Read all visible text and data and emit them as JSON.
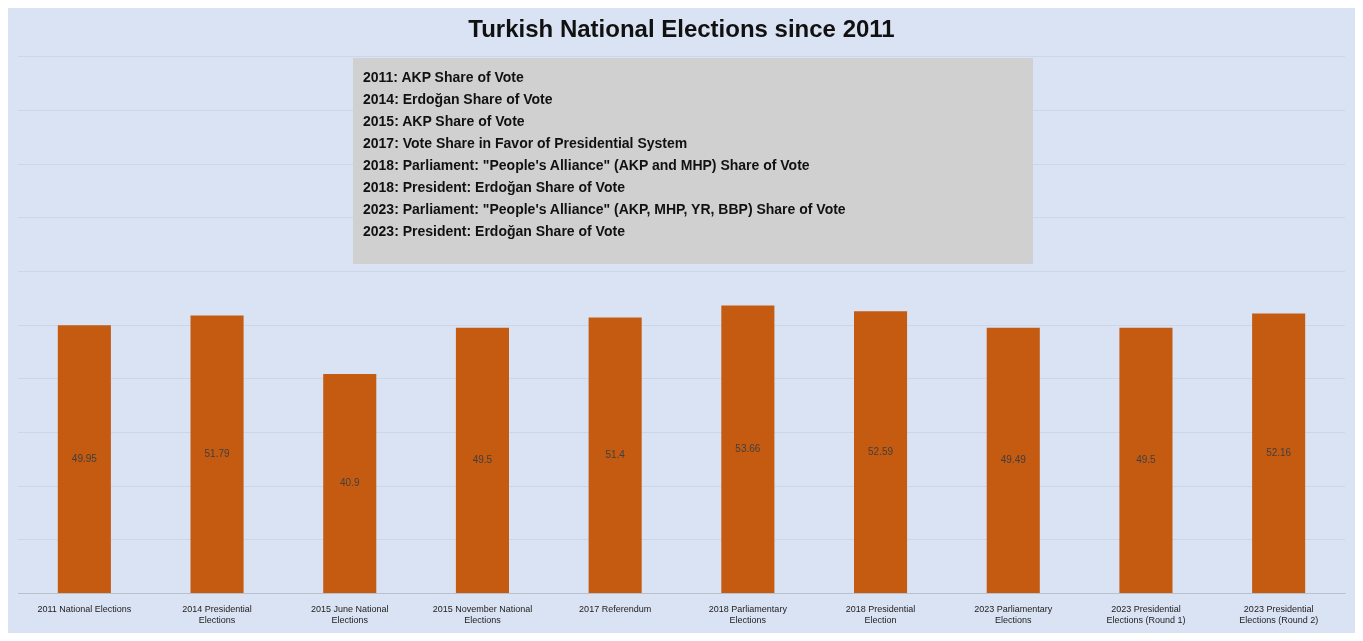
{
  "chart_data": {
    "type": "bar",
    "title": "Turkish National Elections since 2011",
    "categories": [
      "2011 National Elections",
      "2014 Presidential Elections",
      "2015 June National Elections",
      "2015 November National Elections",
      "2017 Referendum",
      "2018 Parliamentary Elections",
      "2018 Presidential Election",
      "2023 Parliamentary Elections",
      "2023 Presidential Elections (Round 1)",
      "2023 Presidential Elections (Round 2)"
    ],
    "values": [
      49.95,
      51.79,
      40.9,
      49.5,
      51.4,
      53.66,
      52.59,
      49.49,
      49.5,
      52.16
    ],
    "color": "#c55a11",
    "ylim": [
      0,
      100
    ],
    "yticks": [
      {
        "value": 0,
        "label": null
      },
      {
        "value": 10,
        "label": null
      },
      {
        "value": 20,
        "label": null
      },
      {
        "value": 30,
        "label": null
      },
      {
        "value": 40,
        "label": null
      },
      {
        "value": 50,
        "label": null
      },
      {
        "value": 60,
        "label": null
      },
      {
        "value": 70,
        "label": null
      },
      {
        "value": 80,
        "label": null
      },
      {
        "value": 90,
        "label": null
      },
      {
        "value": 100,
        "label": null
      }
    ],
    "grid": "y",
    "data_labels": true,
    "legend": false,
    "annotations": [
      "2011: AKP Share of Vote",
      "2014: Erdoğan Share of Vote",
      "2015: AKP Share of Vote",
      "2017: Vote Share in Favor of Presidential System",
      "2018: Parliament: \"People's Alliance\" (AKP and MHP) Share of Vote",
      "2018: President: Erdoğan Share of Vote",
      "2023: Parliament: \"People's Alliance\" (AKP, MHP, YR, BBP) Share of Vote",
      "2023: President: Erdoğan Share of Vote"
    ]
  }
}
